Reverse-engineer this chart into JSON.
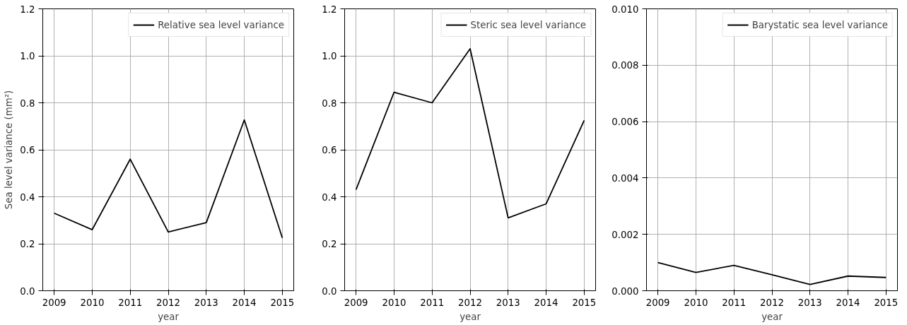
{
  "chart_data": [
    {
      "type": "line",
      "x": [
        2009,
        2010,
        2011,
        2012,
        2013,
        2014,
        2015
      ],
      "series": [
        {
          "name": "Relative sea level variance",
          "color": "#000000",
          "values": [
            0.33,
            0.26,
            0.56,
            0.25,
            0.29,
            0.727,
            0.225
          ]
        }
      ],
      "ylabel": "Sea level variance (mm²)",
      "xlabel": "year",
      "xlim": [
        2008.7,
        2015.3
      ],
      "xticks": [
        2009,
        2010,
        2011,
        2012,
        2013,
        2014,
        2015
      ],
      "ylim": [
        0,
        1.2
      ],
      "yticks": [
        {
          "value": 0,
          "label": "0.0"
        },
        0.2,
        0.4,
        0.6,
        0.8,
        {
          "value": 1,
          "label": "1.0"
        },
        1.2
      ],
      "grid": true,
      "legend": "top right"
    },
    {
      "type": "line",
      "x": [
        2009,
        2010,
        2011,
        2012,
        2013,
        2014,
        2015
      ],
      "series": [
        {
          "name": "Steric sea level variance",
          "color": "#000000",
          "values": [
            0.43,
            0.845,
            0.8,
            1.03,
            0.31,
            0.37,
            0.725
          ]
        }
      ],
      "xlabel": "year",
      "xlim": [
        2008.7,
        2015.3
      ],
      "xticks": [
        2009,
        2010,
        2011,
        2012,
        2013,
        2014,
        2015
      ],
      "ylim": [
        0,
        1.2
      ],
      "yticks": [
        {
          "value": 0,
          "label": "0.0"
        },
        0.2,
        0.4,
        0.6,
        0.8,
        {
          "value": 1,
          "label": "1.0"
        },
        1.2
      ],
      "grid": true,
      "legend": "top right"
    },
    {
      "type": "line",
      "x": [
        2009,
        2010,
        2011,
        2012,
        2013,
        2014,
        2015
      ],
      "series": [
        {
          "name": "Barystatic sea level variance",
          "color": "#000000",
          "values": [
            0.001,
            0.00065,
            0.0009,
            0.00057,
            0.00022,
            0.00052,
            0.00047
          ]
        }
      ],
      "xlabel": "year",
      "xlim": [
        2008.7,
        2015.3
      ],
      "xticks": [
        2009,
        2010,
        2011,
        2012,
        2013,
        2014,
        2015
      ],
      "ylim": [
        0,
        0.01
      ],
      "yticks": [
        {
          "value": 0,
          "label": "0.000"
        },
        {
          "value": 0.002,
          "label": "0.002"
        },
        {
          "value": 0.004,
          "label": "0.004"
        },
        {
          "value": 0.006,
          "label": "0.006"
        },
        {
          "value": 0.008,
          "label": "0.008"
        },
        {
          "value": 0.01,
          "label": "0.010"
        }
      ],
      "grid": true,
      "legend": "top right"
    }
  ]
}
